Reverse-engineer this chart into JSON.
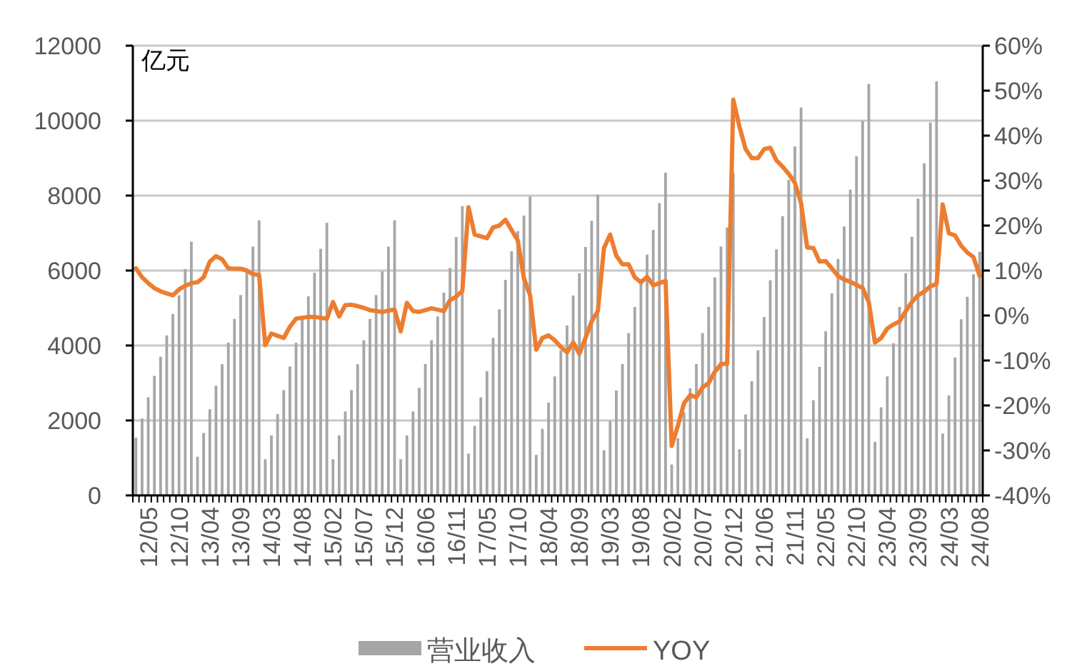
{
  "chart_data": {
    "type": "bar",
    "ylabel": "亿元",
    "ylim": [
      0,
      12000
    ],
    "yticks": [
      0,
      2000,
      4000,
      6000,
      8000,
      10000,
      12000
    ],
    "y2lim": [
      -40,
      60
    ],
    "y2ticks": [
      {
        "value": -40,
        "label": "-40%"
      },
      {
        "value": -30,
        "label": "-30%"
      },
      {
        "value": -20,
        "label": "-20%"
      },
      {
        "value": -10,
        "label": "-10%"
      },
      {
        "value": 0,
        "label": "0%"
      },
      {
        "value": 10,
        "label": "10%"
      },
      {
        "value": 20,
        "label": "20%"
      },
      {
        "value": 30,
        "label": "30%"
      },
      {
        "value": 40,
        "label": "40%"
      },
      {
        "value": 50,
        "label": "50%"
      },
      {
        "value": 60,
        "label": "60%"
      }
    ],
    "grid": "y",
    "legend": "bottom",
    "categories": [
      null,
      null,
      "12/05",
      null,
      null,
      null,
      null,
      "12/10",
      null,
      null,
      null,
      null,
      "13/04",
      null,
      null,
      null,
      null,
      "13/09",
      null,
      null,
      null,
      null,
      "14/03",
      null,
      null,
      null,
      null,
      "14/08",
      null,
      null,
      null,
      null,
      "15/02",
      null,
      null,
      null,
      null,
      "15/07",
      null,
      null,
      null,
      null,
      "15/12",
      null,
      null,
      null,
      null,
      "16/06",
      null,
      null,
      null,
      null,
      "16/11",
      null,
      null,
      null,
      null,
      "17/05",
      null,
      null,
      null,
      null,
      "17/10",
      null,
      null,
      null,
      null,
      "18/04",
      null,
      null,
      null,
      null,
      "18/09",
      null,
      null,
      null,
      null,
      "19/03",
      null,
      null,
      null,
      null,
      "19/08",
      null,
      null,
      null,
      null,
      "20/02",
      null,
      null,
      null,
      null,
      "20/07",
      null,
      null,
      null,
      null,
      "20/12",
      null,
      null,
      null,
      null,
      "21/06",
      null,
      null,
      null,
      null,
      "21/11",
      null,
      null,
      null,
      null,
      "22/05",
      null,
      null,
      null,
      null,
      "22/10",
      null,
      null,
      null,
      null,
      "23/04",
      null,
      null,
      null,
      null,
      "23/09",
      null,
      null,
      null,
      null,
      "24/03",
      null,
      null,
      null,
      null,
      "24/08"
    ],
    "series": [
      {
        "name": "营业收入",
        "color": "#a6a6a6",
        "values": [
          1540,
          2050,
          2620,
          3190,
          3700,
          4270,
          4840,
          5340,
          6040,
          6770,
          1030,
          1665,
          2300,
          2930,
          3500,
          4075,
          4710,
          5345,
          5980,
          6640,
          7340,
          965,
          1600,
          2170,
          2810,
          3440,
          4075,
          4710,
          5310,
          5940,
          6580,
          7275,
          965,
          1600,
          2240,
          2810,
          3500,
          4140,
          4710,
          5345,
          5980,
          6640,
          7340,
          965,
          1600,
          2240,
          2870,
          3505,
          4140,
          4775,
          5410,
          6070,
          6895,
          7720,
          1117,
          1855,
          2617,
          3315,
          4203,
          4965,
          5752,
          6514,
          7050,
          7467,
          7975,
          1081,
          1777,
          2475,
          3175,
          3873,
          4534,
          5333,
          5930,
          6630,
          7327,
          8026,
          1205,
          1983,
          2800,
          3505,
          4330,
          5030,
          5727,
          6425,
          7085,
          7800,
          8610,
          826,
          1523,
          2222,
          2857,
          3505,
          4330,
          5030,
          5815,
          6640,
          7150,
          8600,
          1230,
          2160,
          3050,
          3873,
          4760,
          5740,
          6565,
          7450,
          8420,
          9310,
          10350,
          1523,
          2540,
          3430,
          4380,
          5390,
          6310,
          7175,
          8160,
          9050,
          9990,
          10980,
          1430,
          2350,
          3175,
          4060,
          5030,
          5930,
          6900,
          7920,
          8860,
          9950,
          11050,
          1650,
          2665,
          3680,
          4700,
          5300,
          5900,
          6500
        ]
      },
      {
        "name": "YOY",
        "type": "line",
        "axis": "y2",
        "color": "#ed7d31",
        "values": [
          10.5,
          8.5,
          7.2,
          6.1,
          5.4,
          4.9,
          4.5,
          5.8,
          6.6,
          7.2,
          7.4,
          8.5,
          12,
          13.2,
          12.5,
          10.5,
          10.4,
          10.4,
          10,
          9.2,
          9,
          -6.6,
          -4,
          -4.5,
          -5,
          -2.5,
          -0.7,
          -0.5,
          -0.3,
          -0.3,
          -0.5,
          -0.7,
          3,
          -0.2,
          2.3,
          2.4,
          2.1,
          1.7,
          1.2,
          1,
          0.8,
          1.1,
          1.3,
          -3.5,
          2.8,
          1,
          0.8,
          1.2,
          1.6,
          1.3,
          1,
          3.4,
          4.2,
          5.5,
          24.1,
          18,
          17.6,
          17.2,
          19.6,
          20,
          21.3,
          19,
          16.7,
          8.3,
          4.5,
          -7.6,
          -5,
          -4.4,
          -5.5,
          -7,
          -8.2,
          -6,
          -8.5,
          -5,
          -1.3,
          1,
          15,
          18,
          13.3,
          11.4,
          11.4,
          8.5,
          7.4,
          8.6,
          6.7,
          7.2,
          7.7,
          -29,
          -24.5,
          -19.5,
          -17.7,
          -18.2,
          -16,
          -15,
          -12.5,
          -10.8,
          -10.7,
          48,
          42,
          37,
          35,
          35,
          37,
          37.3,
          34.5,
          33.1,
          31.5,
          29.5,
          25,
          15.1,
          15,
          12,
          12.1,
          10.5,
          8.8,
          8,
          7.5,
          6.8,
          6.1,
          3,
          -6,
          -5,
          -2.9,
          -2,
          -1.3,
          1,
          3,
          4.5,
          5.3,
          6.5,
          7,
          24.7,
          18.3,
          17.8,
          15.5,
          14,
          13,
          8.8
        ]
      }
    ]
  }
}
